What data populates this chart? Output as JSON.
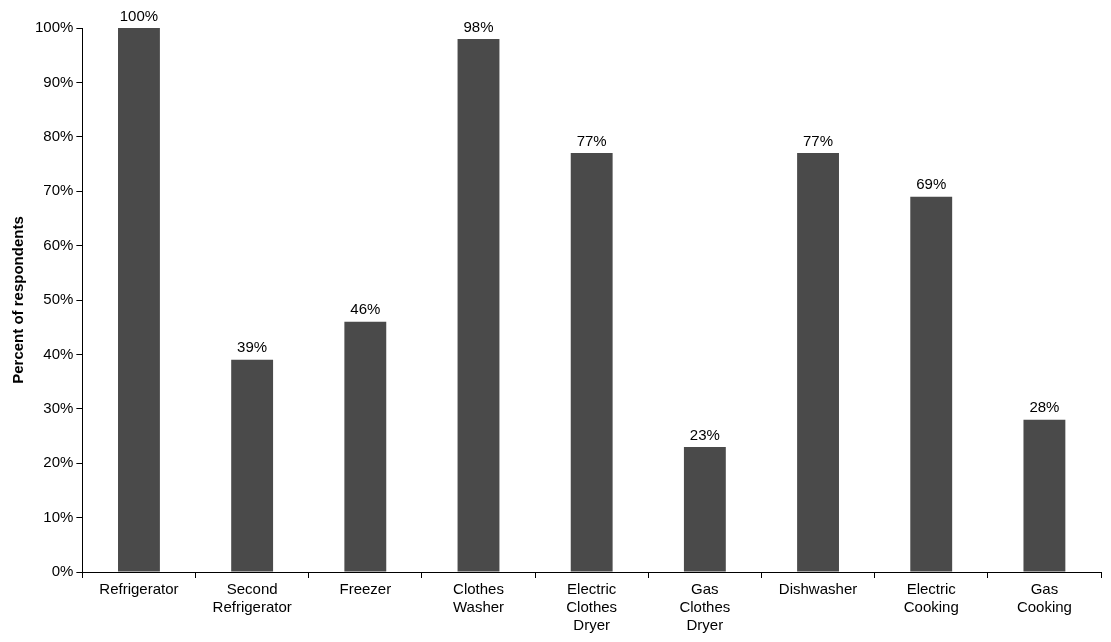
{
  "chart_data": {
    "type": "bar",
    "ylabel": "Percent of respondents",
    "categories": [
      "Refrigerator",
      "Second Refrigerator",
      "Freezer",
      "Clothes Washer",
      "Electric Clothes Dryer",
      "Gas Clothes Dryer",
      "Dishwasher",
      "Electric Cooking",
      "Gas Cooking"
    ],
    "values": [
      100,
      39,
      46,
      98,
      77,
      23,
      77,
      69,
      28
    ],
    "value_labels": [
      "100%",
      "39%",
      "46%",
      "98%",
      "77%",
      "23%",
      "77%",
      "69%",
      "28%"
    ],
    "color": "#4a4a4a",
    "ylim": [
      0,
      100
    ],
    "yticks": [
      {
        "value": 0,
        "label": "0%"
      },
      {
        "value": 10,
        "label": "10%"
      },
      {
        "value": 20,
        "label": "20%"
      },
      {
        "value": 30,
        "label": "30%"
      },
      {
        "value": 40,
        "label": "40%"
      },
      {
        "value": 50,
        "label": "50%"
      },
      {
        "value": 60,
        "label": "60%"
      },
      {
        "value": 70,
        "label": "70%"
      },
      {
        "value": 80,
        "label": "80%"
      },
      {
        "value": 90,
        "label": "90%"
      },
      {
        "value": 100,
        "label": "100%"
      }
    ],
    "grid": false,
    "legend": false
  }
}
